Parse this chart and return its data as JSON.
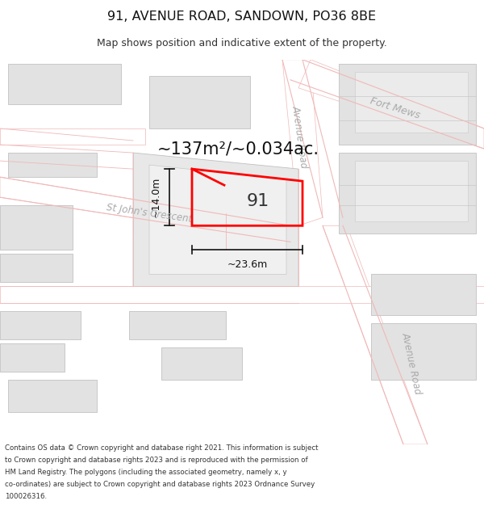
{
  "title": "91, AVENUE ROAD, SANDOWN, PO36 8BE",
  "subtitle": "Map shows position and indicative extent of the property.",
  "footer": "Contains OS data © Crown copyright and database right 2021. This information is subject to Crown copyright and database rights 2023 and is reproduced with the permission of HM Land Registry. The polygons (including the associated geometry, namely x, y co-ordinates) are subject to Crown copyright and database rights 2023 Ordnance Survey 100026316.",
  "bg_color": "#f7f7f7",
  "building_fill": "#e2e2e2",
  "building_edge": "#c8c8c8",
  "road_fill": "#ffffff",
  "road_line_color": "#f0b8b8",
  "property_color": "#ff0000",
  "property_lw": 2.0,
  "street_label_color": "#aaaaaa",
  "measurement_color": "#111111",
  "area_text": "~137m²/~0.034ac.",
  "width_text": "~23.6m",
  "height_text": "~14.0m",
  "property_label": "91"
}
